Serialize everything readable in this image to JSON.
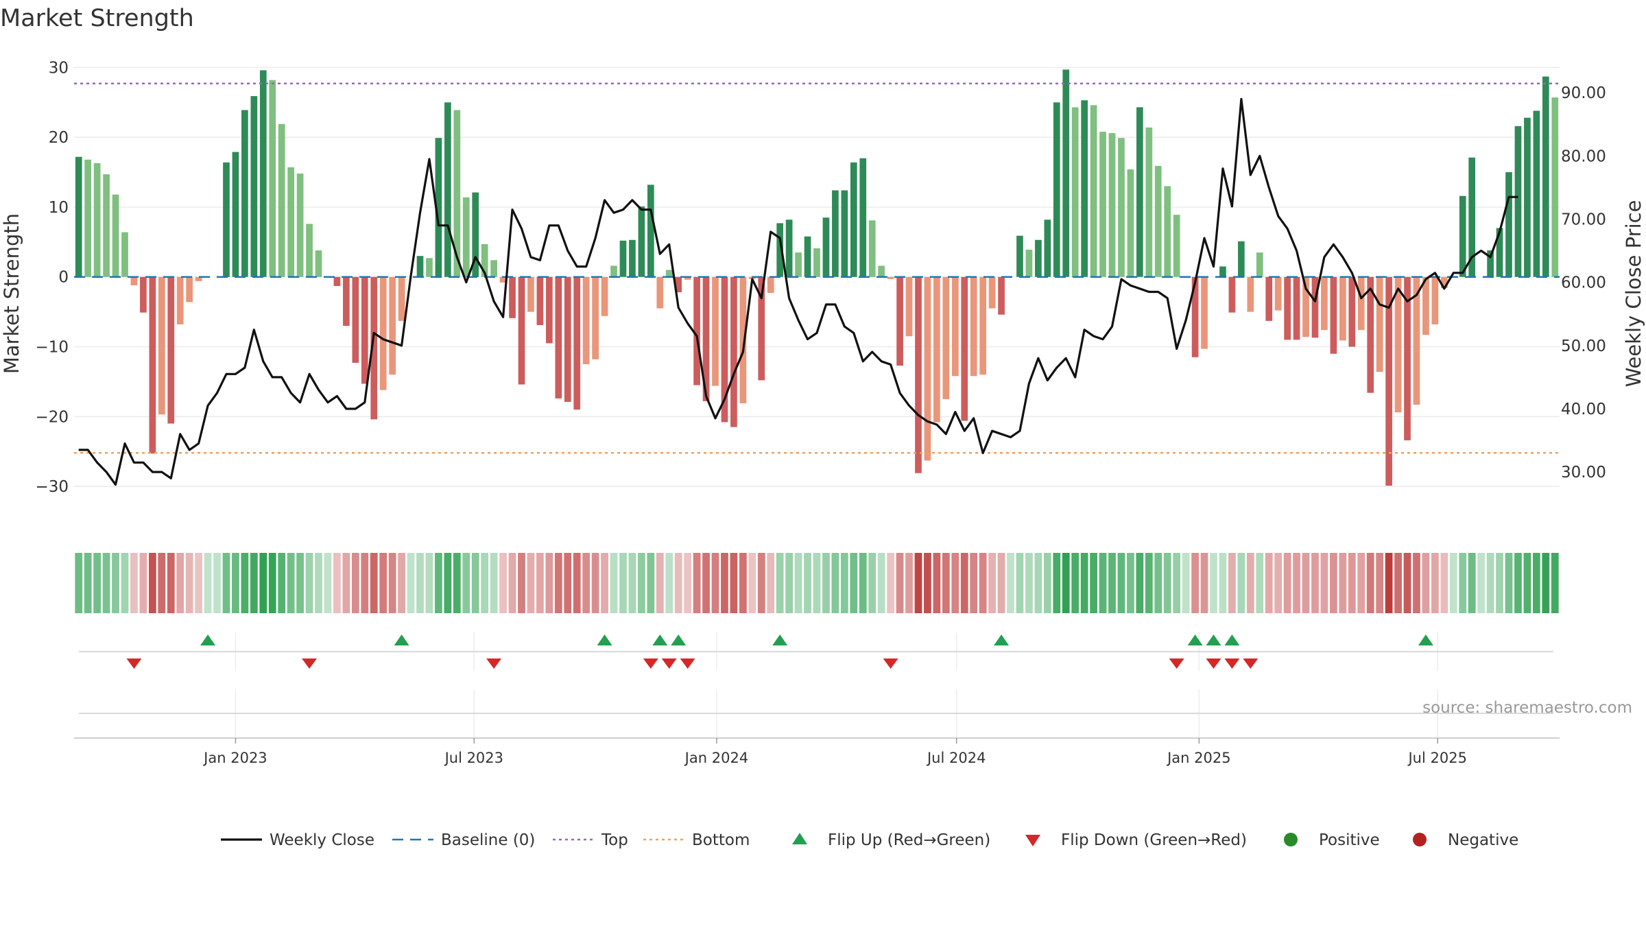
{
  "chart_data": {
    "type": "bar",
    "title": "Market Strength",
    "ylabel_left": "Market Strength",
    "ylabel_right": "Weekly Close Price",
    "left_axis": {
      "min": -35,
      "max": 32,
      "ticks": [
        30,
        20,
        10,
        0,
        -10,
        -20,
        -30
      ],
      "tick_labels": [
        "30",
        "20",
        "10",
        "0",
        "−10",
        "−20",
        "−30"
      ]
    },
    "right_axis": {
      "min": 22.2,
      "max": 96.2,
      "ticks": [
        90,
        80,
        70,
        60,
        50,
        40,
        30
      ],
      "tick_labels": [
        "90.00",
        "80.00",
        "70.00",
        "60.00",
        "50.00",
        "40.00",
        "30.00"
      ]
    },
    "x_axis": {
      "start": "2022-09-04",
      "interval_days": 7,
      "date_ticks": [
        {
          "date": "2023-01-01",
          "label": "Jan 2023"
        },
        {
          "date": "2023-07-01",
          "label": "Jul 2023"
        },
        {
          "date": "2024-01-01",
          "label": "Jan 2024"
        },
        {
          "date": "2024-07-01",
          "label": "Jul 2024"
        },
        {
          "date": "2025-01-01",
          "label": "Jan 2025"
        },
        {
          "date": "2025-07-01",
          "label": "Jul 2025"
        }
      ]
    },
    "top_line": 27.7,
    "bottom_line": -25.2,
    "strength": [
      17.2,
      16.8,
      16.3,
      14.7,
      11.8,
      6.4,
      -1.2,
      -5.1,
      -25.3,
      -19.7,
      -21.0,
      -6.8,
      -3.6,
      -0.6,
      0,
      0,
      16.4,
      17.9,
      23.9,
      25.9,
      29.6,
      28.2,
      21.9,
      15.7,
      14.8,
      7.6,
      3.8,
      0,
      -1.3,
      -7.0,
      -12.3,
      -15.3,
      -20.4,
      -16.2,
      -14.0,
      -6.3,
      0,
      3.0,
      2.7,
      19.9,
      25.0,
      23.9,
      11.4,
      12.1,
      4.7,
      2.4,
      -0.8,
      -5.9,
      -15.4,
      -5.0,
      -6.9,
      -9.5,
      -17.4,
      -17.9,
      -19.0,
      -12.5,
      -11.8,
      -5.6,
      1.6,
      5.2,
      5.3,
      10.1,
      13.2,
      -4.5,
      1.0,
      -2.2,
      -0.4,
      -15.5,
      -17.8,
      -15.6,
      -20.8,
      -21.5,
      -18.1,
      -0.3,
      -14.8,
      -2.3,
      7.7,
      8.2,
      3.5,
      5.8,
      4.1,
      8.5,
      12.4,
      12.4,
      16.4,
      17.0,
      8.1,
      1.6,
      -0.3,
      -12.7,
      -8.5,
      -28.1,
      -26.3,
      -20.8,
      -17.5,
      -14.2,
      -20.6,
      -14.2,
      -14.0,
      -4.5,
      -5.4,
      0,
      5.9,
      3.9,
      5.3,
      8.2,
      25.0,
      29.7,
      24.3,
      25.3,
      24.6,
      20.8,
      20.6,
      19.9,
      15.4,
      24.3,
      21.4,
      15.9,
      13.0,
      8.9,
      0,
      -11.5,
      -10.3,
      0,
      1.5,
      -5.1,
      5.1,
      -5.0,
      3.5,
      -6.3,
      -4.8,
      -9.0,
      -9.0,
      -8.6,
      -8.7,
      -7.6,
      -11.0,
      -9.1,
      -10.0,
      -7.6,
      -16.6,
      -13.6,
      -29.9,
      -19.4,
      -23.4,
      -18.3,
      -8.3,
      -6.8,
      -1.6,
      0,
      11.6,
      17.1,
      0,
      3.8,
      7.0,
      15.0,
      21.6,
      22.8,
      23.8,
      28.7,
      25.7
    ],
    "price": [
      33.5,
      33.5,
      31.5,
      30.0,
      28.0,
      34.5,
      31.5,
      31.5,
      30.0,
      30.0,
      29.0,
      36.0,
      33.5,
      34.5,
      40.5,
      42.5,
      45.5,
      45.5,
      46.5,
      52.5,
      47.5,
      45.0,
      45.0,
      42.5,
      41.0,
      45.5,
      43.0,
      41.0,
      42.0,
      40.0,
      40.0,
      41.0,
      52.0,
      51.0,
      50.5,
      50.0,
      61.0,
      71.0,
      79.5,
      69.0,
      69.0,
      64.0,
      60.0,
      64.0,
      61.5,
      57.0,
      54.5,
      71.5,
      68.5,
      64.0,
      63.5,
      69.0,
      69.0,
      65.0,
      62.5,
      62.5,
      67.0,
      73.0,
      71.0,
      71.5,
      73.0,
      71.5,
      71.5,
      64.5,
      66.0,
      56.0,
      53.5,
      51.5,
      42.0,
      38.5,
      41.5,
      45.5,
      49.0,
      60.5,
      57.5,
      68.0,
      67.0,
      57.5,
      54.0,
      51.0,
      52.0,
      56.5,
      56.5,
      53.0,
      52.0,
      47.5,
      49.0,
      47.5,
      47.0,
      42.5,
      40.5,
      39.0,
      38.0,
      37.5,
      36.0,
      39.5,
      36.5,
      38.5,
      33.0,
      36.5,
      36.0,
      35.5,
      36.5,
      44.0,
      48.0,
      44.5,
      46.5,
      48.0,
      45.0,
      52.5,
      51.5,
      51.0,
      53.0,
      60.5,
      59.5,
      59.0,
      58.5,
      58.5,
      57.5,
      49.5,
      54.0,
      60.0,
      67.0,
      62.5,
      78.0,
      72.0,
      89.0,
      77.0,
      80.0,
      75.0,
      70.5,
      68.5,
      65.0,
      59.0,
      57.0,
      64.0,
      66.0,
      64.0,
      61.5,
      57.5,
      59.0,
      56.5,
      56.0,
      59.0,
      57.0,
      58.0,
      60.5,
      61.5,
      59.0,
      61.5,
      61.5,
      64.0,
      65.0,
      64.0,
      68.0,
      73.5,
      73.5
    ],
    "flip_up": [
      14,
      35,
      57,
      63,
      65,
      76,
      100,
      121,
      123,
      125,
      146
    ],
    "flip_down": [
      6,
      25,
      45,
      62,
      64,
      66,
      88,
      119,
      123,
      125,
      127
    ],
    "source_text": "source: sharemaestro.com",
    "legend": [
      {
        "label": "Weekly Close",
        "kind": "line",
        "color": "#111111"
      },
      {
        "label": "Baseline (0)",
        "kind": "dash",
        "color": "#1f77b4"
      },
      {
        "label": "Top",
        "kind": "dot",
        "color": "#9467bd"
      },
      {
        "label": "Bottom",
        "kind": "dot",
        "color": "#f0a060"
      },
      {
        "label": "Flip Up (Red→Green)",
        "kind": "tri-up",
        "color": "#22a050"
      },
      {
        "label": "Flip Down (Green→Red)",
        "kind": "tri-down",
        "color": "#d62728"
      },
      {
        "label": "Positive",
        "kind": "circle",
        "color": "#2a8a2a"
      },
      {
        "label": "Negative",
        "kind": "circle",
        "color": "#b22222"
      }
    ],
    "colors": {
      "pos_strong": "#2e8b57",
      "pos_light": "#7fbf7f",
      "neg_strong": "#cd5c5c",
      "neg_light": "#e9967a",
      "baseline": "#1f77b4",
      "price": "#111111"
    }
  }
}
